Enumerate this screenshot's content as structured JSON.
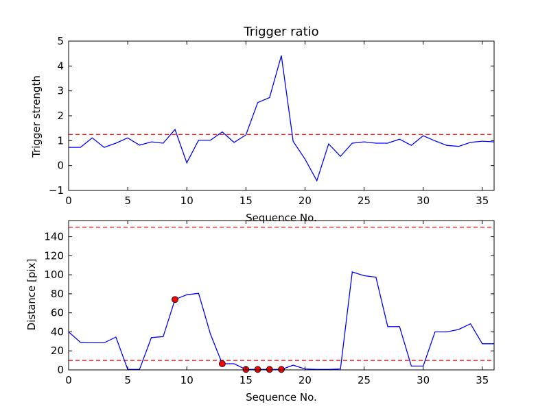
{
  "chart_data": [
    {
      "type": "line",
      "title": "Trigger ratio",
      "xlabel": "Sequence No.",
      "ylabel": "Trigger strength",
      "xlim": [
        0,
        36
      ],
      "ylim": [
        -1,
        5
      ],
      "xticks": [
        "0",
        "5",
        "10",
        "15",
        "20",
        "25",
        "30",
        "35"
      ],
      "yticks": [
        "−1",
        "0",
        "1",
        "2",
        "3",
        "4",
        "5"
      ],
      "grid": false,
      "series": [
        {
          "color": "#0000ff",
          "style": "solid",
          "x": [
            0,
            1,
            2,
            3,
            4,
            5,
            6,
            7,
            8,
            9,
            10,
            11,
            12,
            13,
            14,
            15,
            16,
            17,
            18,
            19,
            20,
            21,
            22,
            23,
            24,
            25,
            26,
            27,
            28,
            29,
            30,
            31,
            32,
            33,
            34,
            35,
            36
          ],
          "values": [
            0.73,
            0.73,
            1.11,
            0.73,
            0.9,
            1.11,
            0.82,
            0.95,
            0.9,
            1.45,
            0.11,
            1.02,
            1.02,
            1.35,
            0.93,
            1.23,
            2.53,
            2.73,
            4.42,
            0.97,
            0.26,
            -0.61,
            0.87,
            0.37,
            0.9,
            0.95,
            0.9,
            0.9,
            1.06,
            0.81,
            1.2,
            0.99,
            0.81,
            0.77,
            0.93,
            0.98,
            0.95
          ]
        }
      ],
      "hlines": [
        {
          "y": 1.25,
          "color": "#ff0000",
          "style": "dashed"
        }
      ]
    },
    {
      "type": "line",
      "title": "",
      "xlabel": "Sequence No.",
      "ylabel": "Distance [pix]",
      "xlim": [
        0,
        36
      ],
      "ylim": [
        0,
        157
      ],
      "xticks": [
        "0",
        "5",
        "10",
        "15",
        "20",
        "25",
        "30",
        "35"
      ],
      "yticks": [
        "0",
        "20",
        "40",
        "60",
        "80",
        "100",
        "120",
        "140"
      ],
      "grid": false,
      "series": [
        {
          "color": "#0000ff",
          "style": "solid",
          "x": [
            0,
            1,
            2,
            3,
            4,
            5,
            6,
            7,
            8,
            9,
            10,
            11,
            12,
            13,
            14,
            15,
            16,
            17,
            18,
            19,
            20,
            21,
            22,
            23,
            24,
            25,
            26,
            27,
            28,
            29,
            30,
            31,
            32,
            33,
            34,
            35,
            36
          ],
          "values": [
            40,
            29,
            28.5,
            28.5,
            34.5,
            0.5,
            0.5,
            34,
            35,
            74,
            79,
            80.5,
            37.5,
            6.5,
            6.5,
            0.5,
            0.5,
            0.5,
            0.5,
            5,
            1,
            0.5,
            0.5,
            1,
            103,
            99,
            97.5,
            45.5,
            45.5,
            4,
            4,
            40,
            40,
            42.5,
            48.5,
            27.5,
            27.5
          ]
        }
      ],
      "markers": {
        "color": "#ff0000",
        "x": [
          9,
          13,
          15,
          16,
          17,
          18
        ],
        "y": [
          74,
          6.5,
          0.5,
          0.5,
          0.5,
          0.5
        ]
      },
      "hlines": [
        {
          "y": 150,
          "color": "#ff0000",
          "style": "dashed"
        },
        {
          "y": 10,
          "color": "#ff0000",
          "style": "dashed"
        }
      ]
    }
  ]
}
